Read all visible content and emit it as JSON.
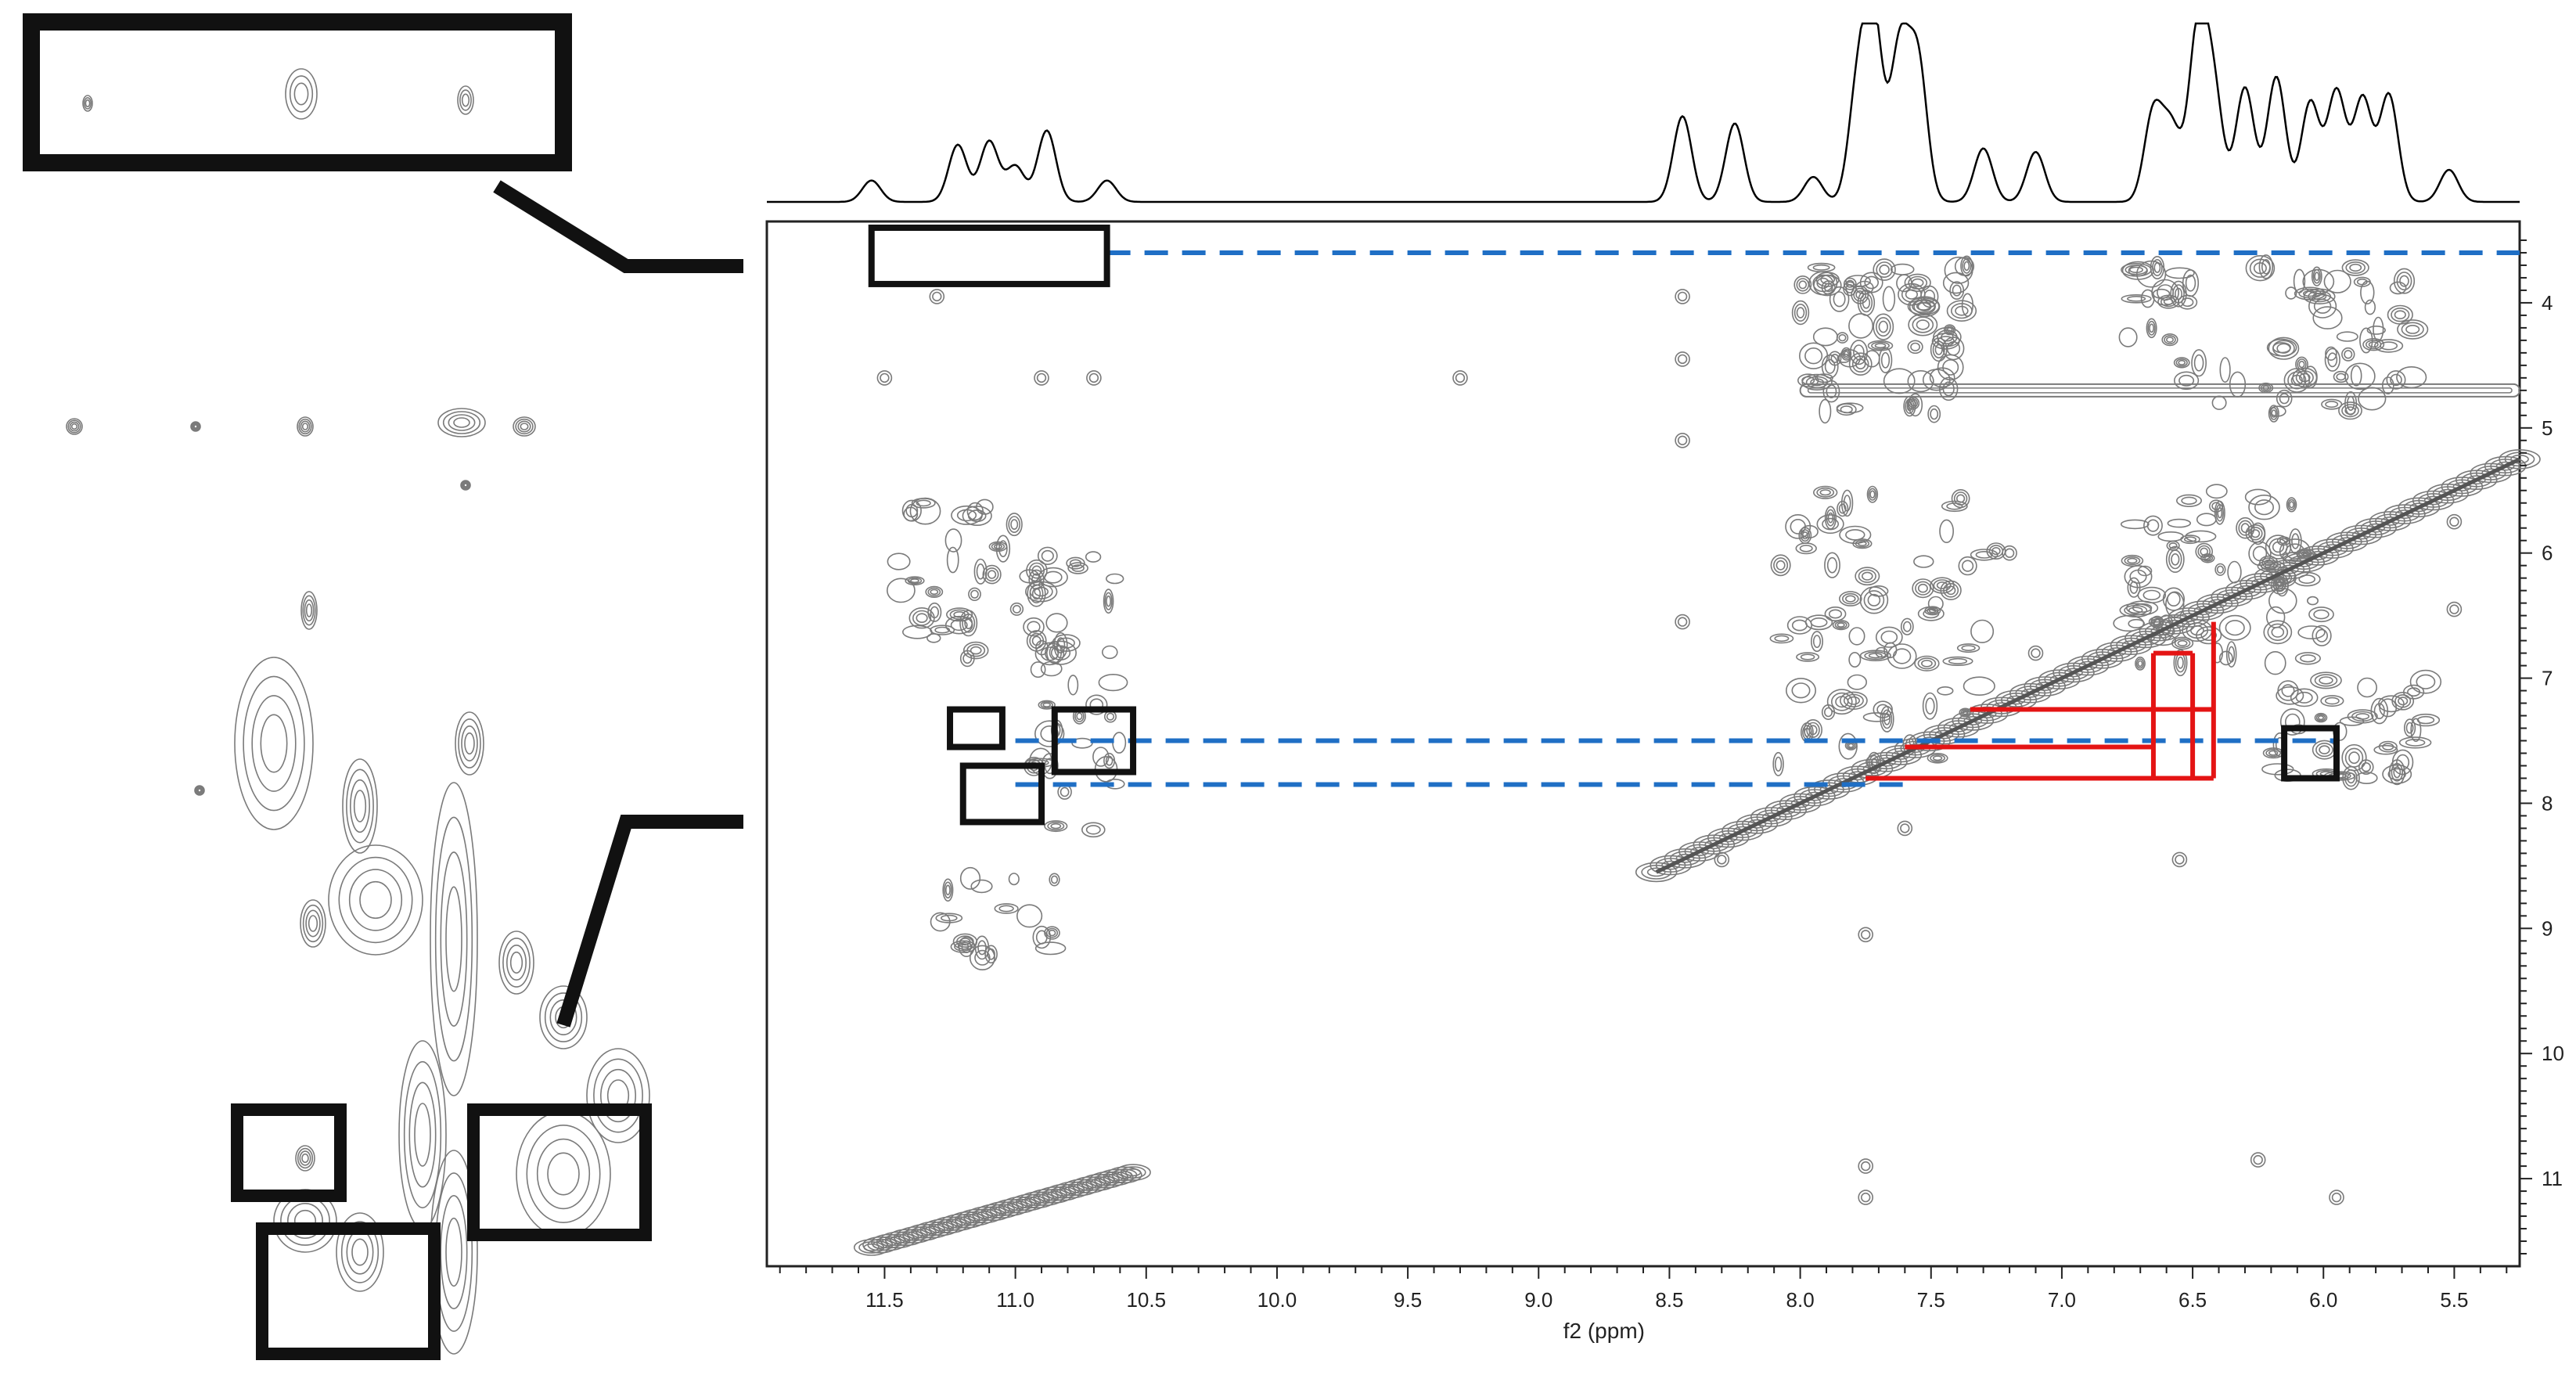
{
  "chart_data": {
    "type": "contour",
    "xlabel": "f2 (ppm)",
    "ylabel": "",
    "x_axis": {
      "range": [
        11.95,
        5.25
      ],
      "reversed": true,
      "ticks": [
        "11.5",
        "11.0",
        "10.5",
        "10.0",
        "9.5",
        "9.0",
        "8.5",
        "8.0",
        "7.5",
        "7.0",
        "6.5",
        "6.0",
        "5.5"
      ]
    },
    "y_axis": {
      "range": [
        3.35,
        11.7
      ],
      "reversed": true,
      "side": "right",
      "ticks": [
        "4",
        "5",
        "6",
        "7",
        "8",
        "9",
        "10",
        "11"
      ]
    },
    "projection_1d": {
      "peaks_ppm": [
        11.55,
        11.22,
        11.1,
        11.0,
        10.88,
        10.65,
        8.45,
        8.25,
        7.95,
        7.78,
        7.72,
        7.62,
        7.55,
        7.3,
        7.1,
        6.65,
        6.58,
        6.48,
        6.42,
        6.3,
        6.18,
        6.05,
        5.95,
        5.85,
        5.75,
        5.52
      ],
      "relative_heights": [
        0.12,
        0.32,
        0.34,
        0.2,
        0.4,
        0.12,
        0.48,
        0.44,
        0.14,
        0.62,
        1.0,
        0.85,
        0.78,
        0.3,
        0.28,
        0.5,
        0.4,
        0.94,
        0.6,
        0.64,
        0.7,
        0.56,
        0.62,
        0.58,
        0.6,
        0.18
      ]
    },
    "cross_peak_regions": [
      {
        "x": [
          11.45,
          10.85
        ],
        "y": [
          5.6,
          6.9
        ],
        "intensity": "medium"
      },
      {
        "x": [
          10.95,
          10.6
        ],
        "y": [
          6.0,
          8.3
        ],
        "intensity": "medium"
      },
      {
        "x": [
          11.3,
          10.85
        ],
        "y": [
          8.6,
          9.3
        ],
        "intensity": "weak"
      },
      {
        "x": [
          8.0,
          7.35
        ],
        "y": [
          3.7,
          4.9
        ],
        "intensity": "strong"
      },
      {
        "x": [
          6.75,
          5.65
        ],
        "y": [
          3.7,
          4.9
        ],
        "intensity": "strong"
      },
      {
        "x": [
          8.1,
          7.25
        ],
        "y": [
          5.5,
          7.7
        ],
        "intensity": "strong"
      },
      {
        "x": [
          6.75,
          6.0
        ],
        "y": [
          5.5,
          6.9
        ],
        "intensity": "strong"
      },
      {
        "x": [
          6.2,
          5.6
        ],
        "y": [
          7.0,
          7.8
        ],
        "intensity": "medium"
      }
    ],
    "horizontal_band": {
      "y": 4.7,
      "x": [
        8.0,
        5.25
      ]
    },
    "diagonal": {
      "from": [
        8.55,
        8.55
      ],
      "to": [
        5.25,
        5.25
      ]
    },
    "highlight_boxes": [
      {
        "x": [
          11.55,
          10.65
        ],
        "y": [
          3.4,
          3.85
        ],
        "color": "#111111",
        "zoomed": true
      },
      {
        "x": [
          11.25,
          11.05
        ],
        "y": [
          7.25,
          7.55
        ],
        "color": "#111111"
      },
      {
        "x": [
          10.85,
          10.55
        ],
        "y": [
          7.25,
          7.75
        ],
        "color": "#111111"
      },
      {
        "x": [
          11.2,
          10.9
        ],
        "y": [
          7.7,
          8.15
        ],
        "color": "#111111"
      },
      {
        "x": [
          6.15,
          5.95
        ],
        "y": [
          7.4,
          7.8
        ],
        "color": "#111111"
      }
    ],
    "dashed_connectors": [
      {
        "y": 3.6,
        "x": [
          10.65,
          5.25
        ],
        "color": "#1f6fc5"
      },
      {
        "y": 7.5,
        "x": [
          11.0,
          5.95
        ],
        "color": "#1f6fc5"
      },
      {
        "y": 7.85,
        "x": [
          11.0,
          7.6
        ],
        "color": "#1f6fc5"
      }
    ],
    "red_walk_lines": [
      {
        "from": [
          7.35,
          7.25
        ],
        "to": [
          6.42,
          7.25
        ]
      },
      {
        "from": [
          7.6,
          7.55
        ],
        "to": [
          6.65,
          7.55
        ]
      },
      {
        "from": [
          7.75,
          7.8
        ],
        "to": [
          6.42,
          7.8
        ]
      },
      {
        "from": [
          6.65,
          6.8
        ],
        "to": [
          6.65,
          7.8
        ]
      },
      {
        "from": [
          6.65,
          6.8
        ],
        "to": [
          6.5,
          6.8
        ]
      },
      {
        "from": [
          6.5,
          6.8
        ],
        "to": [
          6.5,
          7.8
        ]
      },
      {
        "from": [
          6.42,
          6.55
        ],
        "to": [
          6.42,
          7.8
        ]
      }
    ],
    "colors": {
      "contour": "#7a7a7a",
      "dashed": "#1f6fc5",
      "red": "#e41414",
      "box": "#111111",
      "spectrum": "#000000"
    }
  }
}
